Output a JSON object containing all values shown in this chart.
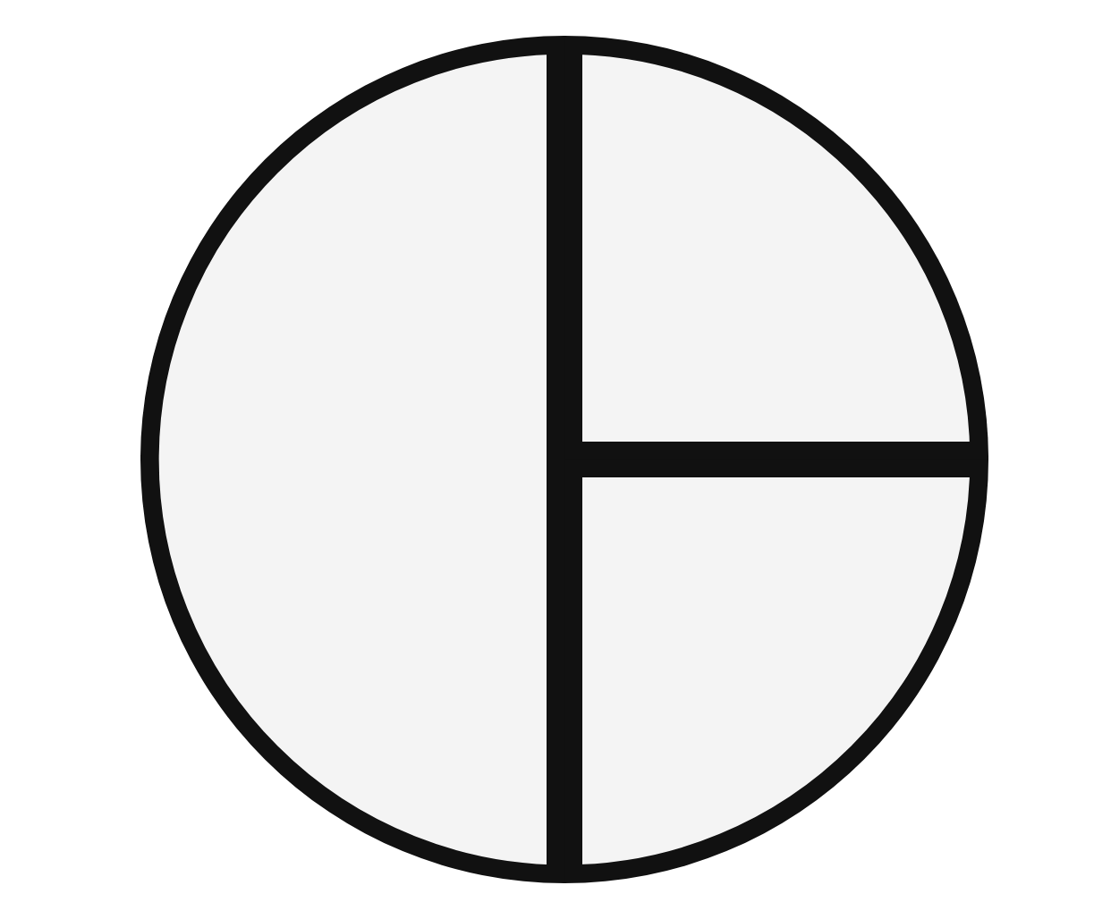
{
  "chart_data": {
    "type": "pie",
    "categories": [
      null,
      null,
      null
    ],
    "values": [
      25,
      25,
      50
    ],
    "colors": [
      "#f4f4f4",
      "#f4f4f4",
      "#f4f4f4"
    ],
    "legend": false
  }
}
